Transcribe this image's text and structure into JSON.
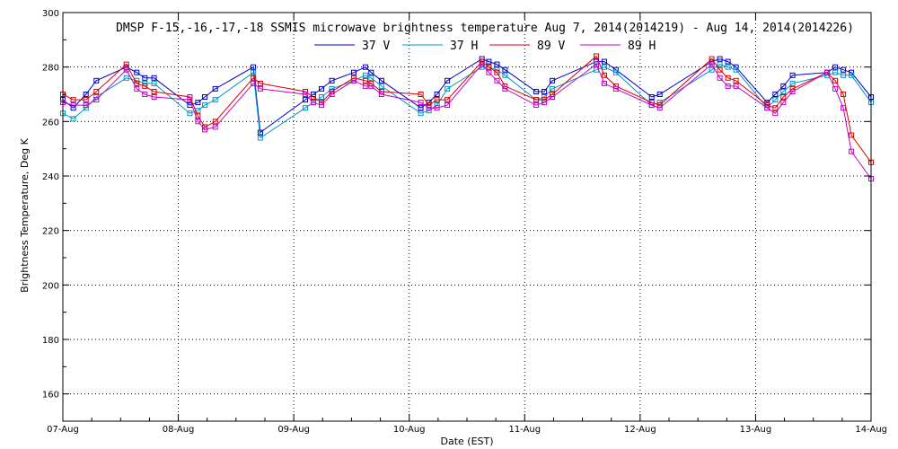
{
  "chart_data": {
    "type": "line",
    "title": "DMSP F-15,-16,-17,-18 SSMIS microwave brightness temperature Aug  7, 2014(2014219) - Aug 14, 2014(2014226)",
    "xlabel": "Date (EST)",
    "ylabel": "Brightness Temperature, Deg K",
    "x_unit": "days since 07-Aug 00:00 EST",
    "xlim": [
      0,
      7
    ],
    "ylim": [
      150,
      300
    ],
    "yticks": [
      160,
      180,
      200,
      220,
      240,
      260,
      280,
      300
    ],
    "xticks": [
      {
        "value": 0,
        "label": "07-Aug"
      },
      {
        "value": 1,
        "label": "08-Aug"
      },
      {
        "value": 2,
        "label": "09-Aug"
      },
      {
        "value": 3,
        "label": "10-Aug"
      },
      {
        "value": 4,
        "label": "11-Aug"
      },
      {
        "value": 5,
        "label": "12-Aug"
      },
      {
        "value": 6,
        "label": "13-Aug"
      },
      {
        "value": 7,
        "label": "14-Aug"
      }
    ],
    "grid": true,
    "legend_position": "top-center",
    "series": [
      {
        "name": "37 V",
        "color": "#0000c8",
        "points": [
          [
            0.0,
            268
          ],
          [
            0.09,
            265
          ],
          [
            0.2,
            270
          ],
          [
            0.29,
            275
          ],
          [
            0.55,
            280
          ],
          [
            0.64,
            278
          ],
          [
            0.71,
            276
          ],
          [
            0.79,
            276
          ],
          [
            1.1,
            266
          ],
          [
            1.17,
            267
          ],
          [
            1.23,
            269
          ],
          [
            1.32,
            272
          ],
          [
            1.65,
            280
          ],
          [
            1.71,
            256
          ],
          [
            2.1,
            268
          ],
          [
            2.17,
            270
          ],
          [
            2.24,
            272
          ],
          [
            2.33,
            275
          ],
          [
            2.52,
            278
          ],
          [
            2.62,
            280
          ],
          [
            2.67,
            278
          ],
          [
            2.76,
            275
          ],
          [
            3.1,
            265
          ],
          [
            3.17,
            267
          ],
          [
            3.24,
            270
          ],
          [
            3.33,
            275
          ],
          [
            3.63,
            283
          ],
          [
            3.69,
            282
          ],
          [
            3.76,
            281
          ],
          [
            3.83,
            279
          ],
          [
            4.1,
            271
          ],
          [
            4.17,
            271
          ],
          [
            4.24,
            275
          ],
          [
            4.62,
            282
          ],
          [
            4.69,
            282
          ],
          [
            4.79,
            279
          ],
          [
            5.1,
            269
          ],
          [
            5.17,
            270
          ],
          [
            5.62,
            282
          ],
          [
            5.69,
            283
          ],
          [
            5.76,
            282
          ],
          [
            5.83,
            280
          ],
          [
            6.1,
            267
          ],
          [
            6.17,
            270
          ],
          [
            6.24,
            273
          ],
          [
            6.32,
            277
          ],
          [
            6.62,
            278
          ],
          [
            6.69,
            280
          ],
          [
            6.76,
            279
          ],
          [
            6.83,
            278
          ],
          [
            7.0,
            269
          ]
        ]
      },
      {
        "name": "37 H",
        "color": "#0096c8",
        "points": [
          [
            0.0,
            263
          ],
          [
            0.09,
            261
          ],
          [
            0.2,
            265
          ],
          [
            0.29,
            269
          ],
          [
            0.55,
            276
          ],
          [
            0.64,
            275
          ],
          [
            0.71,
            274
          ],
          [
            0.79,
            274
          ],
          [
            1.1,
            263
          ],
          [
            1.17,
            264
          ],
          [
            1.23,
            266
          ],
          [
            1.32,
            268
          ],
          [
            1.65,
            278
          ],
          [
            1.71,
            254
          ],
          [
            2.1,
            265
          ],
          [
            2.17,
            267
          ],
          [
            2.24,
            269
          ],
          [
            2.33,
            272
          ],
          [
            2.52,
            275
          ],
          [
            2.62,
            277
          ],
          [
            2.67,
            276
          ],
          [
            2.76,
            273
          ],
          [
            3.1,
            263
          ],
          [
            3.17,
            264
          ],
          [
            3.24,
            266
          ],
          [
            3.33,
            272
          ],
          [
            3.63,
            280
          ],
          [
            3.69,
            280
          ],
          [
            3.76,
            279
          ],
          [
            3.83,
            277
          ],
          [
            4.1,
            268
          ],
          [
            4.17,
            269
          ],
          [
            4.24,
            272
          ],
          [
            4.62,
            279
          ],
          [
            4.69,
            280
          ],
          [
            4.79,
            278
          ],
          [
            5.1,
            266
          ],
          [
            5.17,
            267
          ],
          [
            5.62,
            279
          ],
          [
            5.69,
            281
          ],
          [
            5.76,
            280
          ],
          [
            5.83,
            279
          ],
          [
            6.1,
            265
          ],
          [
            6.17,
            268
          ],
          [
            6.24,
            271
          ],
          [
            6.32,
            274
          ],
          [
            6.62,
            277
          ],
          [
            6.69,
            278
          ],
          [
            6.76,
            277
          ],
          [
            6.83,
            277
          ],
          [
            7.0,
            267
          ]
        ]
      },
      {
        "name": "89 V",
        "color": "#dc0000",
        "points": [
          [
            0.0,
            270
          ],
          [
            0.09,
            268
          ],
          [
            0.2,
            268
          ],
          [
            0.29,
            271
          ],
          [
            0.55,
            281
          ],
          [
            0.64,
            274
          ],
          [
            0.71,
            273
          ],
          [
            0.79,
            271
          ],
          [
            1.1,
            269
          ],
          [
            1.17,
            262
          ],
          [
            1.23,
            258
          ],
          [
            1.32,
            260
          ],
          [
            1.65,
            276
          ],
          [
            1.71,
            274
          ],
          [
            2.1,
            271
          ],
          [
            2.17,
            269
          ],
          [
            2.24,
            267
          ],
          [
            2.33,
            271
          ],
          [
            2.52,
            276
          ],
          [
            2.62,
            275
          ],
          [
            2.67,
            274
          ],
          [
            2.76,
            271
          ],
          [
            3.1,
            270
          ],
          [
            3.17,
            266
          ],
          [
            3.24,
            268
          ],
          [
            3.33,
            268
          ],
          [
            3.63,
            282
          ],
          [
            3.69,
            280
          ],
          [
            3.76,
            278
          ],
          [
            3.83,
            273
          ],
          [
            4.1,
            268
          ],
          [
            4.17,
            268
          ],
          [
            4.24,
            270
          ],
          [
            4.62,
            284
          ],
          [
            4.69,
            277
          ],
          [
            4.79,
            273
          ],
          [
            5.1,
            267
          ],
          [
            5.17,
            266
          ],
          [
            5.62,
            283
          ],
          [
            5.69,
            279
          ],
          [
            5.76,
            276
          ],
          [
            5.83,
            275
          ],
          [
            6.1,
            266
          ],
          [
            6.17,
            265
          ],
          [
            6.24,
            269
          ],
          [
            6.32,
            272
          ],
          [
            6.62,
            278
          ],
          [
            6.69,
            275
          ],
          [
            6.76,
            270
          ],
          [
            6.83,
            255
          ],
          [
            7.0,
            245
          ]
        ]
      },
      {
        "name": "89 H",
        "color": "#c800c8",
        "points": [
          [
            0.0,
            267
          ],
          [
            0.09,
            266
          ],
          [
            0.2,
            266
          ],
          [
            0.29,
            268
          ],
          [
            0.55,
            279
          ],
          [
            0.64,
            272
          ],
          [
            0.71,
            270
          ],
          [
            0.79,
            269
          ],
          [
            1.1,
            268
          ],
          [
            1.17,
            260
          ],
          [
            1.23,
            257
          ],
          [
            1.32,
            258
          ],
          [
            1.65,
            274
          ],
          [
            1.71,
            272
          ],
          [
            2.1,
            270
          ],
          [
            2.17,
            267
          ],
          [
            2.24,
            266
          ],
          [
            2.33,
            270
          ],
          [
            2.52,
            275
          ],
          [
            2.62,
            273
          ],
          [
            2.67,
            273
          ],
          [
            2.76,
            270
          ],
          [
            3.1,
            267
          ],
          [
            3.17,
            265
          ],
          [
            3.24,
            265
          ],
          [
            3.33,
            266
          ],
          [
            3.63,
            281
          ],
          [
            3.69,
            278
          ],
          [
            3.76,
            275
          ],
          [
            3.83,
            272
          ],
          [
            4.1,
            266
          ],
          [
            4.17,
            267
          ],
          [
            4.24,
            269
          ],
          [
            4.62,
            281
          ],
          [
            4.69,
            274
          ],
          [
            4.79,
            272
          ],
          [
            5.1,
            266
          ],
          [
            5.17,
            265
          ],
          [
            5.62,
            281
          ],
          [
            5.69,
            276
          ],
          [
            5.76,
            273
          ],
          [
            5.83,
            273
          ],
          [
            6.1,
            265
          ],
          [
            6.17,
            263
          ],
          [
            6.24,
            267
          ],
          [
            6.32,
            271
          ],
          [
            6.62,
            278
          ],
          [
            6.69,
            272
          ],
          [
            6.76,
            265
          ],
          [
            6.83,
            249
          ],
          [
            7.0,
            239
          ]
        ]
      }
    ]
  }
}
